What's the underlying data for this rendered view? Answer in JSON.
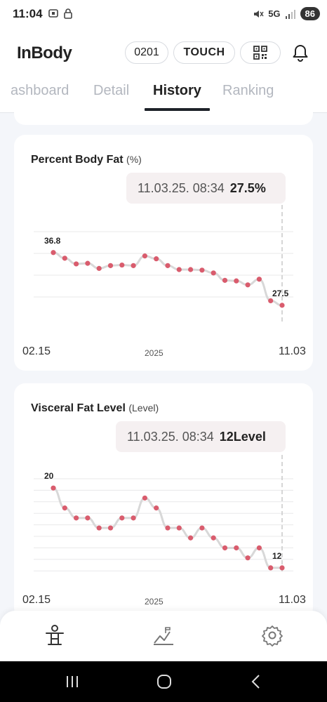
{
  "status": {
    "time": "11:04",
    "network": "5G",
    "battery": "86"
  },
  "header": {
    "logo": "InBody",
    "id_label": "0201",
    "touch_label": "TOUCH"
  },
  "tabs": [
    "ashboard",
    "Detail",
    "History",
    "Ranking"
  ],
  "active_tab": "History",
  "cards": [
    {
      "title": "Percent Body Fat",
      "unit": "(%)",
      "tooltip_date": "11.03.25. 08:34",
      "tooltip_value": "27.5%",
      "first_label": "36.8",
      "last_label": "27.5",
      "x_start": "02.15",
      "x_mid": "2025",
      "x_end": "11.03"
    },
    {
      "title": "Visceral Fat Level",
      "unit": "(Level)",
      "tooltip_date": "11.03.25. 08:34",
      "tooltip_value": "12Level",
      "first_label": "20",
      "last_label": "12",
      "x_start": "02.15",
      "x_mid": "2025",
      "x_end": "11.03"
    }
  ],
  "chart_data": [
    {
      "type": "line",
      "title": "Percent Body Fat",
      "unit": "%",
      "x": [
        "02.15",
        "",
        "",
        "",
        "",
        "",
        "",
        "",
        "",
        "",
        "",
        "",
        "",
        "",
        "",
        "",
        "",
        "",
        "",
        "",
        "11.03"
      ],
      "series": [
        {
          "values": [
            36.8,
            35.8,
            34.8,
            34.9,
            34.0,
            34.5,
            34.6,
            34.5,
            36.2,
            35.7,
            34.5,
            33.8,
            33.8,
            33.7,
            33.2,
            31.9,
            31.8,
            31.1,
            32.1,
            28.3,
            27.5
          ]
        }
      ],
      "ylim": [
        26,
        39
      ],
      "color": "#d95c6d",
      "line_color": "#d8d8d8"
    },
    {
      "type": "line",
      "title": "Visceral Fat Level",
      "unit": "Level",
      "x": [
        "02.15",
        "",
        "",
        "",
        "",
        "",
        "",
        "",
        "",
        "",
        "",
        "",
        "",
        "",
        "",
        "",
        "",
        "",
        "",
        "",
        "11.03"
      ],
      "series": [
        {
          "values": [
            20,
            18,
            17,
            17,
            16,
            16,
            17,
            17,
            19,
            18,
            16,
            16,
            15,
            16,
            15,
            14,
            14,
            13,
            14,
            12,
            12
          ]
        }
      ],
      "ylim": [
        11.5,
        21
      ],
      "color": "#d95c6d",
      "line_color": "#d8d8d8"
    }
  ],
  "nav": {
    "items": [
      "body-icon",
      "chart-icon",
      "settings-icon"
    ]
  }
}
